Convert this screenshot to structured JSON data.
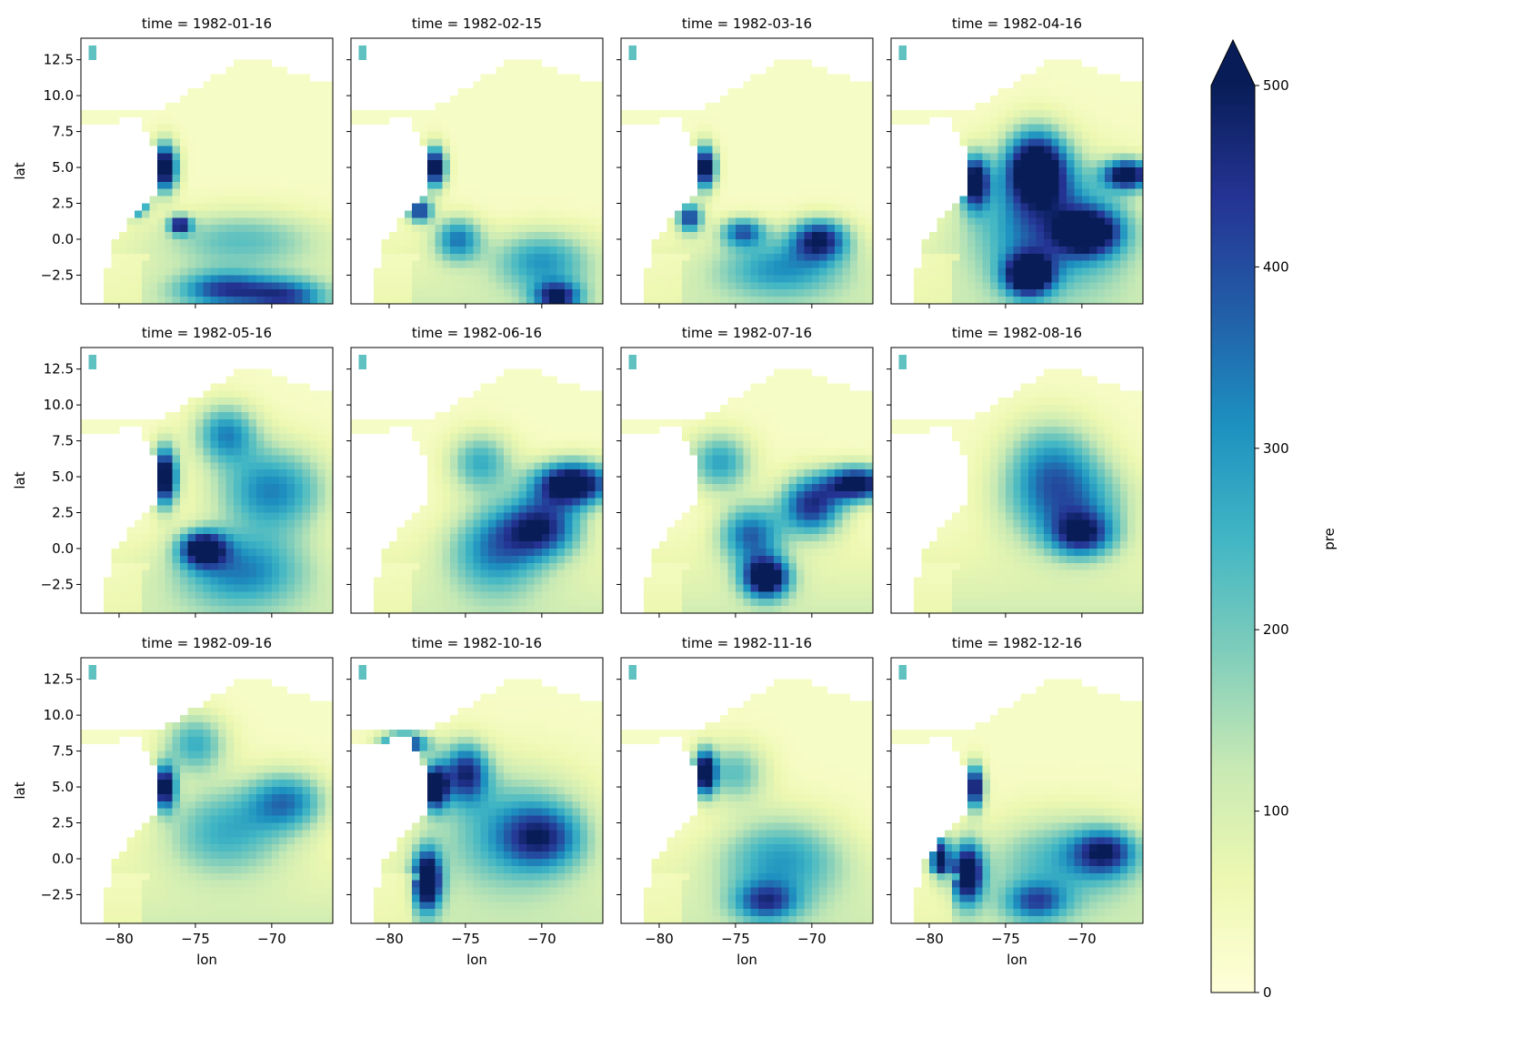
{
  "chart_data": {
    "type": "heatmap",
    "variable": "pre",
    "colormap": "YlGnBu",
    "colormap_stops": [
      "#ffffd9",
      "#edf8b1",
      "#c7e9b4",
      "#7fcdbb",
      "#41b6c4",
      "#1d91c0",
      "#225ea8",
      "#253494",
      "#081d58"
    ],
    "clim": [
      0,
      500
    ],
    "extend": "max",
    "colorbar_label": "pre",
    "colorbar_ticks": [
      "0",
      "100",
      "200",
      "300",
      "400",
      "500"
    ],
    "xlabel": "lon",
    "ylabel": "lat",
    "xlim": [
      -82.5,
      -66
    ],
    "ylim": [
      -4.5,
      14
    ],
    "xticks": [
      -80,
      -75,
      -70
    ],
    "xtick_labels": [
      "−80",
      "−75",
      "−70"
    ],
    "yticks": [
      -2.5,
      0,
      2.5,
      5,
      7.5,
      10,
      12.5
    ],
    "ytick_labels": [
      "−2.5",
      "0.0",
      "2.5",
      "5.0",
      "7.5",
      "10.0",
      "12.5"
    ],
    "panels": [
      {
        "title": "time = 1982-01-16",
        "hotspots": [
          [
            -77,
            5,
            600,
            0.8,
            1.6
          ],
          [
            -79,
            2.5,
            550,
            0.8,
            0.8
          ],
          [
            -76,
            1,
            450,
            0.7,
            0.6
          ],
          [
            -73,
            -3.5,
            330,
            3,
            1.2
          ],
          [
            -69,
            -4,
            300,
            2.5,
            1.2
          ],
          [
            -72,
            0,
            170,
            5,
            2
          ]
        ]
      },
      {
        "title": "time = 1982-02-15",
        "hotspots": [
          [
            -77,
            5,
            550,
            0.7,
            1.4
          ],
          [
            -78,
            2,
            420,
            0.8,
            0.8
          ],
          [
            -75.5,
            0,
            290,
            1.5,
            1.5
          ],
          [
            -69,
            -4,
            400,
            1.5,
            1
          ],
          [
            -70,
            -1.5,
            230,
            3,
            2
          ]
        ]
      },
      {
        "title": "time = 1982-03-16",
        "hotspots": [
          [
            -77,
            5,
            550,
            0.7,
            1.5
          ],
          [
            -78,
            1.5,
            400,
            0.8,
            1
          ],
          [
            -74.5,
            0.5,
            320,
            1.4,
            1
          ],
          [
            -69.5,
            0,
            420,
            1.8,
            1.4
          ],
          [
            -72,
            -2,
            230,
            4,
            2
          ]
        ]
      },
      {
        "title": "time = 1982-04-16",
        "hotspots": [
          [
            -77,
            4,
            520,
            0.9,
            1.8
          ],
          [
            -73,
            5,
            560,
            2,
            2.5
          ],
          [
            -67,
            4.5,
            520,
            1.5,
            1
          ],
          [
            -73.5,
            -2.5,
            560,
            1.5,
            1.4
          ],
          [
            -69.5,
            0.5,
            420,
            2,
            1.5
          ],
          [
            -72,
            1,
            340,
            5,
            4
          ]
        ]
      },
      {
        "title": "time = 1982-05-16",
        "hotspots": [
          [
            -77,
            5,
            580,
            0.8,
            2
          ],
          [
            -74.5,
            0,
            480,
            1.5,
            1.2
          ],
          [
            -70,
            4,
            300,
            3.5,
            3
          ],
          [
            -72,
            -1.5,
            260,
            4,
            2.5
          ],
          [
            -73,
            8,
            280,
            2,
            2
          ]
        ]
      },
      {
        "title": "time = 1982-06-16",
        "hotspots": [
          [
            -68,
            4.5,
            580,
            2.5,
            1.5
          ],
          [
            -70,
            1.5,
            400,
            2.5,
            2
          ],
          [
            -73,
            0,
            280,
            3,
            3
          ],
          [
            -74,
            6,
            230,
            2,
            2
          ]
        ]
      },
      {
        "title": "time = 1982-07-16",
        "hotspots": [
          [
            -73,
            -2,
            560,
            1.5,
            1.4
          ],
          [
            -67,
            4.5,
            520,
            2,
            1.2
          ],
          [
            -70,
            3,
            420,
            2,
            2
          ],
          [
            -74,
            1,
            330,
            2,
            2
          ],
          [
            -76,
            6,
            250,
            2,
            2
          ]
        ]
      },
      {
        "title": "time = 1982-08-16",
        "hotspots": [
          [
            -70,
            1,
            350,
            2,
            1.5
          ],
          [
            -71,
            3,
            270,
            4,
            3
          ],
          [
            -72,
            6,
            220,
            3,
            3
          ]
        ]
      },
      {
        "title": "time = 1982-09-16",
        "hotspots": [
          [
            -77,
            5,
            540,
            0.7,
            1.5
          ],
          [
            -69,
            4,
            280,
            2.5,
            2
          ],
          [
            -73,
            2,
            230,
            4,
            3
          ],
          [
            -75,
            8,
            230,
            2,
            2
          ]
        ]
      },
      {
        "title": "time = 1982-10-16",
        "hotspots": [
          [
            -77.5,
            -1.5,
            600,
            0.9,
            2
          ],
          [
            -77,
            5,
            560,
            0.8,
            1.5
          ],
          [
            -79,
            8,
            460,
            1.5,
            0.8
          ],
          [
            -75,
            6,
            400,
            1.5,
            2
          ],
          [
            -70,
            1.5,
            280,
            2.5,
            2
          ],
          [
            -72,
            2,
            230,
            5,
            4
          ]
        ]
      },
      {
        "title": "time = 1982-11-16",
        "hotspots": [
          [
            -77,
            6,
            560,
            0.7,
            1.5
          ],
          [
            -73,
            -3,
            300,
            2,
            1.3
          ],
          [
            -72,
            0,
            240,
            4,
            3
          ],
          [
            -75,
            6,
            190,
            2,
            2
          ]
        ]
      },
      {
        "title": "time = 1982-12-16",
        "hotspots": [
          [
            -77.5,
            -1,
            560,
            1,
            2
          ],
          [
            -79.3,
            0,
            480,
            0.6,
            1.5
          ],
          [
            -77,
            5,
            520,
            0.6,
            1.5
          ],
          [
            -68.5,
            0.5,
            330,
            2,
            1.5
          ],
          [
            -73,
            -3,
            280,
            2,
            1.3
          ],
          [
            -71,
            0,
            200,
            5,
            3
          ]
        ]
      }
    ]
  }
}
